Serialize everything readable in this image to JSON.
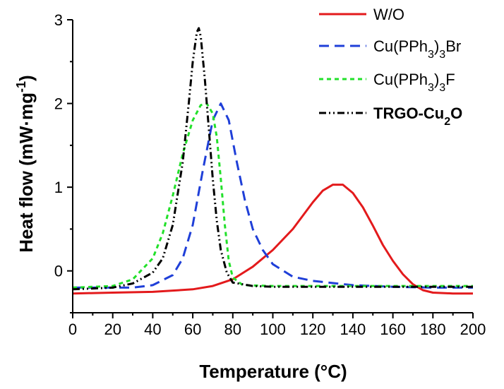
{
  "chart_data": {
    "type": "line",
    "xlabel": "Temperature (°C)",
    "ylabel": {
      "main": "Heat flow (mW·mg",
      "sup": "-1",
      "tail": ")"
    },
    "xlim": [
      0,
      200
    ],
    "ylim": [
      -0.5,
      3
    ],
    "xticks": [
      0,
      20,
      40,
      60,
      80,
      100,
      120,
      140,
      160,
      180,
      200
    ],
    "yticks": [
      0,
      1,
      2,
      3
    ],
    "grid": false,
    "legend_position": "top-right",
    "series": [
      {
        "name": "W/O",
        "legend": [
          {
            "t": "W/O"
          }
        ],
        "color": "#e31a1c",
        "dash": "solid",
        "bold": false,
        "x": [
          0,
          20,
          40,
          60,
          70,
          80,
          90,
          100,
          110,
          120,
          125,
          130,
          135,
          140,
          145,
          150,
          155,
          160,
          165,
          170,
          175,
          180,
          190,
          200
        ],
        "y": [
          -0.27,
          -0.26,
          -0.25,
          -0.22,
          -0.18,
          -0.1,
          0.05,
          0.25,
          0.5,
          0.82,
          0.96,
          1.03,
          1.03,
          0.93,
          0.76,
          0.54,
          0.31,
          0.12,
          -0.04,
          -0.16,
          -0.23,
          -0.26,
          -0.27,
          -0.27
        ]
      },
      {
        "name": "Cu(PPh3)3Br",
        "legend": [
          {
            "t": "Cu(PPh"
          },
          {
            "t": "3",
            "sub": true
          },
          {
            "t": ")"
          },
          {
            "t": "3",
            "sub": true
          },
          {
            "t": "Br"
          }
        ],
        "color": "#1f3fd8",
        "dash": "14 8",
        "bold": false,
        "x": [
          0,
          30,
          40,
          50,
          55,
          60,
          65,
          70,
          74,
          78,
          82,
          86,
          90,
          95,
          100,
          110,
          120,
          140,
          160,
          180,
          200
        ],
        "y": [
          -0.2,
          -0.2,
          -0.17,
          -0.05,
          0.15,
          0.55,
          1.2,
          1.8,
          2.0,
          1.8,
          1.3,
          0.85,
          0.5,
          0.25,
          0.08,
          -0.07,
          -0.12,
          -0.17,
          -0.19,
          -0.2,
          -0.2
        ]
      },
      {
        "name": "Cu(PPh3)3F",
        "legend": [
          {
            "t": "Cu(PPh"
          },
          {
            "t": "3",
            "sub": true
          },
          {
            "t": ")"
          },
          {
            "t": "3",
            "sub": true
          },
          {
            "t": "F"
          }
        ],
        "color": "#22e02a",
        "dash": "6 5",
        "bold": false,
        "x": [
          0,
          20,
          30,
          40,
          45,
          50,
          55,
          60,
          64,
          67,
          70,
          72,
          74,
          76,
          78,
          80,
          85,
          100,
          200
        ],
        "y": [
          -0.2,
          -0.18,
          -0.1,
          0.15,
          0.45,
          0.9,
          1.4,
          1.8,
          1.98,
          2.0,
          1.88,
          1.6,
          1.1,
          0.55,
          0.12,
          -0.08,
          -0.17,
          -0.18,
          -0.18
        ]
      },
      {
        "name": "TRGO-Cu2O",
        "legend": [
          {
            "t": "TRGO-Cu"
          },
          {
            "t": "2",
            "sub": true
          },
          {
            "t": "O"
          }
        ],
        "color": "#000000",
        "dash": "10 4 2 4 2 4",
        "bold": true,
        "x": [
          0,
          20,
          30,
          40,
          45,
          50,
          55,
          58,
          60,
          62,
          63,
          64,
          66,
          68,
          70,
          72,
          74,
          77,
          80,
          90,
          100,
          120,
          140,
          160,
          200
        ],
        "y": [
          -0.22,
          -0.2,
          -0.15,
          -0.02,
          0.15,
          0.55,
          1.3,
          2.0,
          2.5,
          2.85,
          2.9,
          2.8,
          2.3,
          1.7,
          1.1,
          0.6,
          0.25,
          -0.02,
          -0.14,
          -0.18,
          -0.19,
          -0.19,
          -0.19,
          -0.19,
          -0.19
        ]
      }
    ]
  }
}
